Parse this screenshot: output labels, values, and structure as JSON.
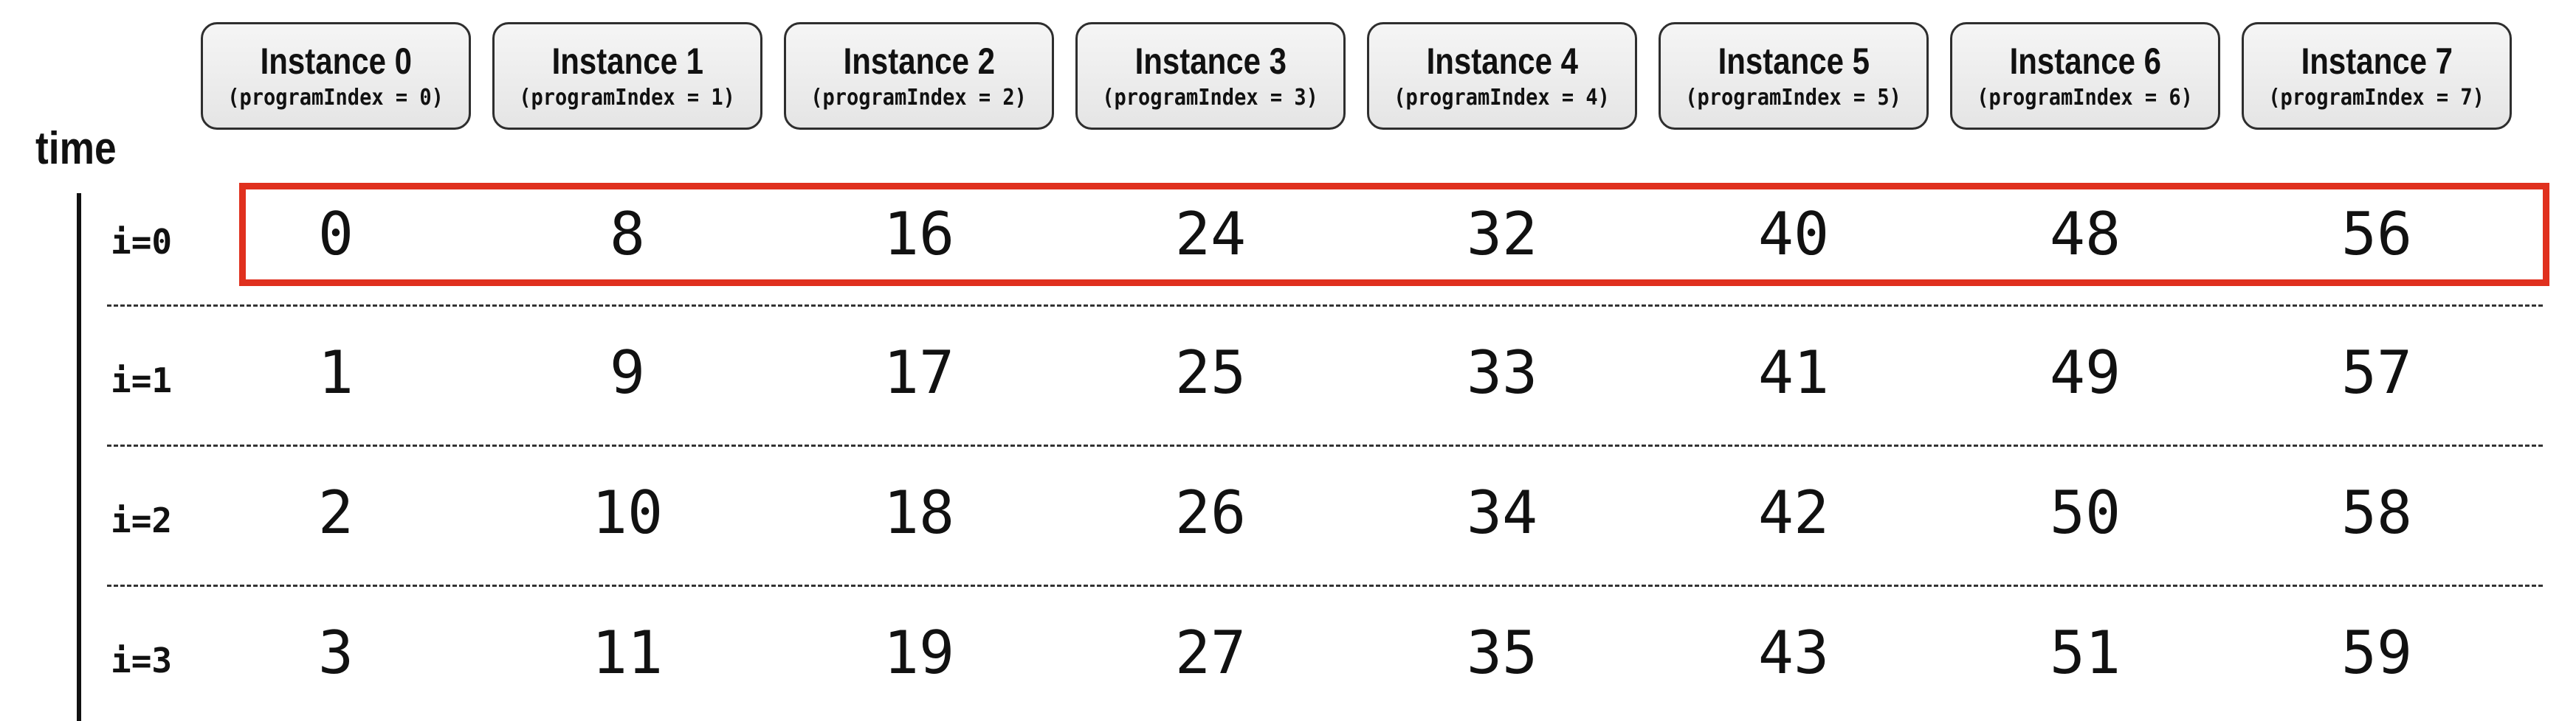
{
  "time_label": "time",
  "instances": [
    {
      "title": "Instance 0",
      "subtitle": "(programIndex = 0)"
    },
    {
      "title": "Instance 1",
      "subtitle": "(programIndex = 1)"
    },
    {
      "title": "Instance 2",
      "subtitle": "(programIndex = 2)"
    },
    {
      "title": "Instance 3",
      "subtitle": "(programIndex = 3)"
    },
    {
      "title": "Instance 4",
      "subtitle": "(programIndex = 4)"
    },
    {
      "title": "Instance 5",
      "subtitle": "(programIndex = 5)"
    },
    {
      "title": "Instance 6",
      "subtitle": "(programIndex = 6)"
    },
    {
      "title": "Instance 7",
      "subtitle": "(programIndex = 7)"
    }
  ],
  "rows": [
    {
      "label": "i=0",
      "values": [
        "0",
        "8",
        "16",
        "24",
        "32",
        "40",
        "48",
        "56"
      ],
      "highlighted": true
    },
    {
      "label": "i=1",
      "values": [
        "1",
        "9",
        "17",
        "25",
        "33",
        "41",
        "49",
        "57"
      ],
      "highlighted": false
    },
    {
      "label": "i=2",
      "values": [
        "2",
        "10",
        "18",
        "26",
        "34",
        "42",
        "50",
        "58"
      ],
      "highlighted": false
    },
    {
      "label": "i=3",
      "values": [
        "3",
        "11",
        "19",
        "27",
        "35",
        "43",
        "51",
        "59"
      ],
      "highlighted": false
    }
  ],
  "colors": {
    "highlight": "#e0301e",
    "box_border": "#2e2e2e",
    "text": "#111111"
  }
}
